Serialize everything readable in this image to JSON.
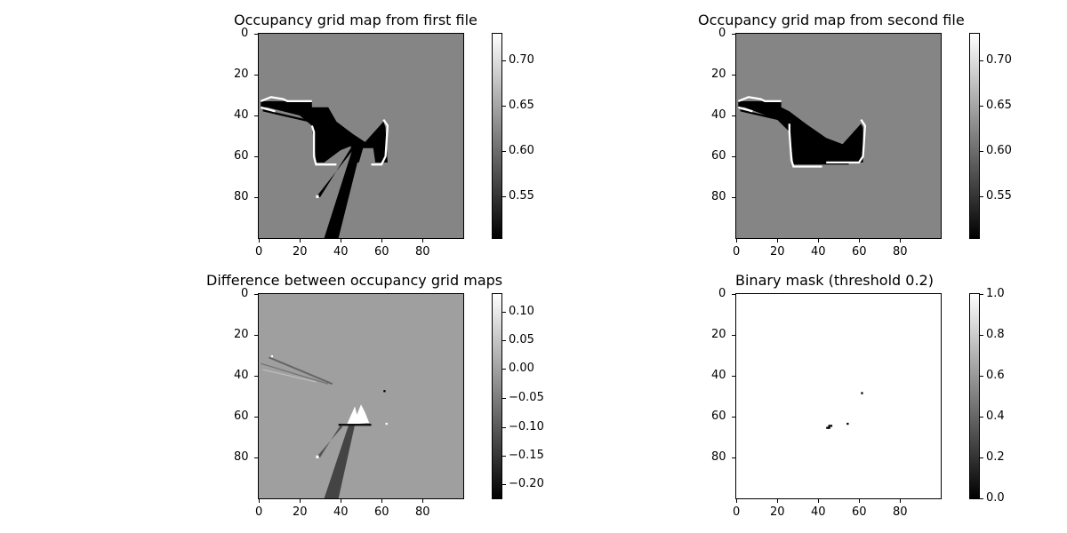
{
  "figure": {
    "layout": "2x2 grid of image plots with colorbars",
    "cmap": "gray"
  },
  "chart_data": [
    {
      "type": "heatmap",
      "title": "Occupancy grid map from first file",
      "xlim": [
        0,
        99
      ],
      "ylim": [
        99,
        0
      ],
      "xticks": [
        "0",
        "20",
        "40",
        "60",
        "80"
      ],
      "yticks": [
        "0",
        "20",
        "40",
        "60",
        "80"
      ],
      "colorbar": {
        "range": [
          0.5,
          0.73
        ],
        "ticks": [
          "0.55",
          "0.60",
          "0.65",
          "0.70"
        ]
      },
      "background_value": 0.6,
      "colors": {
        "background": "#858585",
        "free": "#000000",
        "occupied": "#ffffff"
      }
    },
    {
      "type": "heatmap",
      "title": "Occupancy grid map from  second file",
      "xlim": [
        0,
        99
      ],
      "ylim": [
        99,
        0
      ],
      "xticks": [
        "0",
        "20",
        "40",
        "60",
        "80"
      ],
      "yticks": [
        "0",
        "20",
        "40",
        "60",
        "80"
      ],
      "colorbar": {
        "range": [
          0.5,
          0.73
        ],
        "ticks": [
          "0.55",
          "0.60",
          "0.65",
          "0.70"
        ]
      },
      "background_value": 0.6,
      "colors": {
        "background": "#858585",
        "free": "#000000",
        "occupied": "#ffffff"
      }
    },
    {
      "type": "heatmap",
      "title": "Difference between occupancy grid maps",
      "xlim": [
        0,
        99
      ],
      "ylim": [
        99,
        0
      ],
      "xticks": [
        "0",
        "20",
        "40",
        "60",
        "80"
      ],
      "yticks": [
        "0",
        "20",
        "40",
        "60",
        "80"
      ],
      "colorbar": {
        "range": [
          -0.225,
          0.13
        ],
        "ticks": [
          "0.10",
          "0.05",
          "0.00",
          "−0.05",
          "−0.10",
          "−0.15",
          "−0.20"
        ]
      },
      "background_value": 0.0,
      "colors": {
        "background": "#9f9f9f",
        "negative": "#444444",
        "positive": "#ffffff"
      }
    },
    {
      "type": "heatmap",
      "title": "Binary mask (threshold 0.2)",
      "xlim": [
        0,
        99
      ],
      "ylim": [
        99,
        0
      ],
      "xticks": [
        "0",
        "20",
        "40",
        "60",
        "80"
      ],
      "yticks": [
        "0",
        "20",
        "40",
        "60",
        "80"
      ],
      "colorbar": {
        "range": [
          0.0,
          1.0
        ],
        "ticks": [
          "1.0",
          "0.8",
          "0.6",
          "0.4",
          "0.2",
          "0.0"
        ]
      },
      "background_value": 1.0,
      "zero_cells": [
        [
          61,
          48
        ],
        [
          54,
          63
        ],
        [
          44,
          65
        ],
        [
          45,
          64
        ],
        [
          46,
          64
        ],
        [
          45,
          65
        ]
      ],
      "colors": {
        "background": "#ffffff",
        "zero": "#000000"
      }
    }
  ]
}
